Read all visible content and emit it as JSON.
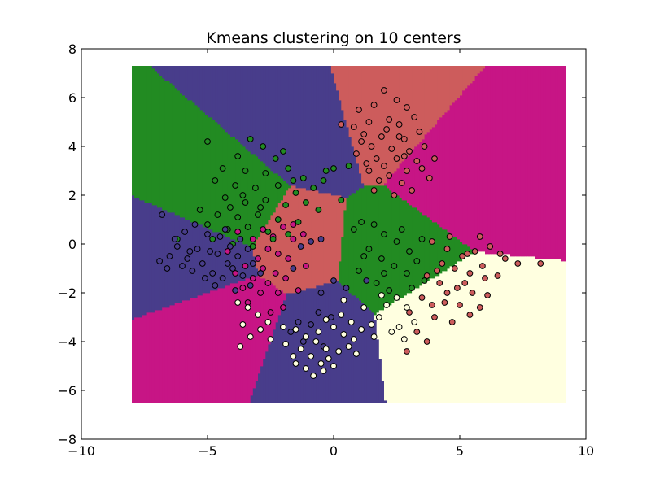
{
  "chart_data": {
    "type": "scatter",
    "title": "Kmeans clustering on 10 centers",
    "xlabel": "",
    "ylabel": "",
    "xlim": [
      -10,
      10
    ],
    "ylim": [
      -8,
      8
    ],
    "x_ticks": [
      -10,
      -5,
      0,
      5,
      10
    ],
    "y_ticks": [
      -8,
      -6,
      -4,
      -2,
      0,
      2,
      4,
      6,
      8
    ],
    "x_tick_labels": [
      "−10",
      "−5",
      "0",
      "5",
      "10"
    ],
    "y_tick_labels": [
      "−8",
      "−6",
      "−4",
      "−2",
      "0",
      "2",
      "4",
      "6",
      "8"
    ],
    "grid": false,
    "legend": "none",
    "background_regions": {
      "extent": {
        "x": [
          -8,
          9.2
        ],
        "y": [
          -6.5,
          7.3
        ]
      },
      "centers": [
        {
          "x": -0.8,
          "y": 4.6,
          "color": "#483D8B"
        },
        {
          "x": 1.8,
          "y": 5.3,
          "color": "#CD5C5C"
        },
        {
          "x": 4.8,
          "y": 2.8,
          "color": "#C71585"
        },
        {
          "x": -3.8,
          "y": 1.2,
          "color": "#228B22"
        },
        {
          "x": -1.8,
          "y": 0.0,
          "color": "#CD5C5C"
        },
        {
          "x": -4.6,
          "y": -0.6,
          "color": "#483D8B"
        },
        {
          "x": 2.4,
          "y": -0.4,
          "color": "#228B22"
        },
        {
          "x": -3.8,
          "y": -2.8,
          "color": "#C71585"
        },
        {
          "x": -0.8,
          "y": -3.8,
          "color": "#483D8B"
        },
        {
          "x": 4.2,
          "y": -3.2,
          "color": "#FFFFE0"
        }
      ]
    },
    "series": [
      {
        "color": "#CD5C5C",
        "points": [
          [
            2.0,
            6.3
          ],
          [
            2.5,
            5.9
          ],
          [
            1.6,
            5.7
          ],
          [
            2.9,
            5.6
          ],
          [
            1.0,
            5.5
          ],
          [
            3.2,
            5.2
          ],
          [
            1.4,
            5.0
          ],
          [
            2.2,
            5.1
          ],
          [
            0.8,
            4.8
          ],
          [
            2.6,
            4.9
          ],
          [
            3.4,
            4.6
          ],
          [
            1.2,
            4.5
          ],
          [
            1.9,
            4.4
          ],
          [
            2.8,
            4.3
          ],
          [
            3.6,
            4.0
          ],
          [
            1.5,
            4.0
          ],
          [
            2.3,
            3.9
          ],
          [
            3.0,
            3.8
          ],
          [
            0.9,
            3.7
          ],
          [
            1.7,
            3.5
          ],
          [
            2.5,
            3.5
          ],
          [
            3.3,
            3.4
          ],
          [
            2.0,
            3.2
          ],
          [
            2.9,
            3.0
          ],
          [
            1.4,
            3.0
          ],
          [
            3.5,
            3.1
          ],
          [
            2.2,
            2.8
          ],
          [
            1.8,
            2.6
          ],
          [
            2.7,
            2.5
          ],
          [
            3.1,
            2.2
          ],
          [
            1.6,
            2.2
          ],
          [
            2.4,
            2.0
          ],
          [
            4.0,
            3.5
          ],
          [
            1.1,
            4.2
          ],
          [
            2.1,
            4.7
          ],
          [
            0.3,
            4.9
          ],
          [
            3.8,
            2.7
          ],
          [
            2.8,
            3.6
          ],
          [
            1.3,
            3.3
          ],
          [
            2.6,
            4.4
          ],
          [
            3.9,
            0.1
          ],
          [
            4.5,
            -0.2
          ],
          [
            5.1,
            -0.5
          ],
          [
            5.6,
            -0.3
          ],
          [
            6.2,
            -0.1
          ],
          [
            6.8,
            -0.6
          ],
          [
            7.3,
            -0.8
          ],
          [
            8.2,
            -0.8
          ],
          [
            4.3,
            -0.8
          ],
          [
            4.8,
            -1.0
          ],
          [
            5.4,
            -1.2
          ],
          [
            6.0,
            -1.4
          ],
          [
            6.5,
            -1.3
          ],
          [
            3.7,
            -1.3
          ],
          [
            4.2,
            -1.6
          ],
          [
            4.9,
            -1.8
          ],
          [
            5.5,
            -2.0
          ],
          [
            6.1,
            -2.1
          ],
          [
            3.5,
            -2.2
          ],
          [
            4.4,
            -2.4
          ],
          [
            5.0,
            -2.5
          ],
          [
            5.8,
            -2.6
          ],
          [
            3.0,
            -2.8
          ],
          [
            4.0,
            -3.0
          ],
          [
            4.7,
            -3.2
          ],
          [
            3.3,
            -3.6
          ],
          [
            3.7,
            -4.0
          ],
          [
            2.9,
            -4.4
          ],
          [
            5.3,
            -0.4
          ],
          [
            4.6,
            0.3
          ],
          [
            5.8,
            0.3
          ],
          [
            4.1,
            -1.1
          ],
          [
            5.2,
            -1.6
          ],
          [
            6.6,
            -0.4
          ],
          [
            5.9,
            -0.9
          ],
          [
            4.5,
            -2.0
          ],
          [
            3.9,
            -2.5
          ],
          [
            5.4,
            -2.9
          ]
        ]
      },
      {
        "color": "#C71585",
        "points": [
          [
            -2.8,
            0.6
          ],
          [
            -2.4,
            0.3
          ],
          [
            -2.0,
            0.7
          ],
          [
            -1.6,
            0.2
          ],
          [
            -3.2,
            0.2
          ],
          [
            -2.6,
            -0.2
          ],
          [
            -2.2,
            -0.4
          ],
          [
            -1.8,
            -0.6
          ],
          [
            -3.0,
            -0.6
          ],
          [
            -3.5,
            -0.9
          ],
          [
            -2.8,
            -1.0
          ],
          [
            -2.3,
            -1.2
          ],
          [
            -1.9,
            -1.4
          ],
          [
            -3.2,
            -1.4
          ],
          [
            -2.6,
            -1.6
          ],
          [
            -3.6,
            -1.8
          ],
          [
            -2.9,
            -2.0
          ],
          [
            -2.2,
            -2.0
          ],
          [
            -3.4,
            -2.4
          ],
          [
            -1.4,
            -1.9
          ],
          [
            -2.0,
            -2.6
          ],
          [
            -1.6,
            0.8
          ],
          [
            -1.2,
            0.4
          ],
          [
            -3.8,
            0.5
          ],
          [
            -3.9,
            -1.2
          ],
          [
            -4.2,
            -0.3
          ],
          [
            -1.1,
            -0.9
          ],
          [
            -2.5,
            -2.8
          ]
        ]
      },
      {
        "color": "#228B22",
        "points": [
          [
            -5.0,
            4.2
          ],
          [
            -3.3,
            4.3
          ],
          [
            -2.8,
            4.0
          ],
          [
            -3.8,
            3.6
          ],
          [
            -2.3,
            3.5
          ],
          [
            -4.4,
            3.1
          ],
          [
            -3.5,
            3.0
          ],
          [
            -2.7,
            2.9
          ],
          [
            -1.8,
            3.1
          ],
          [
            -1.2,
            2.7
          ],
          [
            -4.7,
            2.6
          ],
          [
            -3.9,
            2.4
          ],
          [
            -3.1,
            2.3
          ],
          [
            -2.2,
            2.4
          ],
          [
            -1.5,
            2.1
          ],
          [
            -0.8,
            2.3
          ],
          [
            -0.4,
            2.6
          ],
          [
            -4.3,
            1.9
          ],
          [
            -3.5,
            1.7
          ],
          [
            -2.7,
            1.8
          ],
          [
            -1.9,
            1.6
          ],
          [
            -1.1,
            1.7
          ],
          [
            -5.3,
            1.4
          ],
          [
            -4.6,
            1.2
          ],
          [
            -3.8,
            1.1
          ],
          [
            -3.0,
            1.2
          ],
          [
            -2.2,
            1.0
          ],
          [
            -1.4,
            0.9
          ],
          [
            -0.6,
            1.4
          ],
          [
            -5.0,
            0.8
          ],
          [
            -4.2,
            0.6
          ],
          [
            -3.4,
            0.7
          ],
          [
            -2.6,
            0.5
          ],
          [
            -1.8,
            0.4
          ],
          [
            -4.8,
            0.2
          ],
          [
            -4.0,
            0.0
          ],
          [
            -3.2,
            -0.1
          ],
          [
            -2.4,
            0.2
          ],
          [
            0.0,
            3.1
          ],
          [
            0.3,
            1.8
          ],
          [
            -6.2,
            0.2
          ],
          [
            -2.0,
            3.8
          ],
          [
            -3.6,
            2.0
          ],
          [
            -2.9,
            1.5
          ],
          [
            -1.6,
            2.6
          ],
          [
            -4.1,
            1.5
          ],
          [
            -0.3,
            3.0
          ],
          [
            0.6,
            3.2
          ],
          [
            0.8,
            0.6
          ],
          [
            1.1,
            0.9
          ],
          [
            1.6,
            0.8
          ],
          [
            2.0,
            0.4
          ],
          [
            2.5,
            0.1
          ],
          [
            3.0,
            -0.3
          ],
          [
            3.5,
            0.2
          ],
          [
            1.4,
            -0.2
          ],
          [
            1.9,
            -0.6
          ],
          [
            2.4,
            -0.9
          ],
          [
            2.9,
            -1.2
          ],
          [
            3.3,
            -0.7
          ],
          [
            1.0,
            -1.1
          ],
          [
            1.7,
            -1.6
          ],
          [
            2.2,
            -1.9
          ],
          [
            3.6,
            -1.5
          ],
          [
            1.2,
            -0.5
          ],
          [
            2.7,
            0.6
          ],
          [
            3.1,
            -1.8
          ],
          [
            2.0,
            -1.2
          ]
        ]
      },
      {
        "color": "#483D8B",
        "points": [
          [
            -6.8,
            1.2
          ],
          [
            -6.2,
            -0.1
          ],
          [
            -5.8,
            -0.6
          ],
          [
            -5.4,
            -0.2
          ],
          [
            -5.0,
            0.4
          ],
          [
            -4.6,
            -0.4
          ],
          [
            -4.2,
            -0.8
          ],
          [
            -3.8,
            -0.5
          ],
          [
            -3.4,
            -0.2
          ],
          [
            -6.5,
            -0.5
          ],
          [
            -6.0,
            -0.9
          ],
          [
            -5.6,
            -1.1
          ],
          [
            -5.2,
            -0.8
          ],
          [
            -4.8,
            -1.2
          ],
          [
            -4.4,
            -1.4
          ],
          [
            -4.0,
            -1.0
          ],
          [
            -3.6,
            -1.3
          ],
          [
            -3.2,
            -0.8
          ],
          [
            -5.9,
            0.5
          ],
          [
            -5.5,
            0.8
          ],
          [
            -4.9,
            -0.3
          ],
          [
            -4.5,
            0.3
          ],
          [
            -4.1,
            -0.1
          ],
          [
            -3.7,
            0.2
          ],
          [
            -6.3,
            0.2
          ],
          [
            -5.1,
            -1.4
          ],
          [
            -4.7,
            -1.7
          ],
          [
            -3.9,
            -1.9
          ],
          [
            -3.3,
            -1.7
          ],
          [
            -2.9,
            -1.2
          ],
          [
            -6.9,
            -0.7
          ],
          [
            -4.3,
            0.6
          ],
          [
            -5.7,
            -0.3
          ],
          [
            -6.6,
            -1.0
          ],
          [
            -1.3,
            -0.1
          ],
          [
            -0.9,
            0.1
          ],
          [
            -0.5,
            0.2
          ],
          [
            -0.5,
            -2.0
          ],
          [
            0.5,
            -1.8
          ],
          [
            1.3,
            -1.5
          ],
          [
            0.0,
            -1.5
          ],
          [
            -1.6,
            -1.0
          ],
          [
            -1.4,
            -3.2
          ],
          [
            -0.9,
            -3.3
          ],
          [
            -0.6,
            -2.8
          ],
          [
            -1.2,
            -4.0
          ],
          [
            -0.4,
            -4.2
          ],
          [
            -1.7,
            -3.6
          ],
          [
            -0.1,
            -3.0
          ]
        ]
      },
      {
        "color": "#FFFFE0",
        "points": [
          [
            -3.8,
            -2.4
          ],
          [
            -3.4,
            -2.6
          ],
          [
            -3.0,
            -2.9
          ],
          [
            -2.6,
            -3.2
          ],
          [
            -3.6,
            -3.3
          ],
          [
            -2.9,
            -3.5
          ],
          [
            -3.3,
            -3.8
          ],
          [
            -2.5,
            -3.9
          ],
          [
            -3.7,
            -4.2
          ],
          [
            -1.5,
            -3.5
          ],
          [
            -1.1,
            -3.8
          ],
          [
            -0.7,
            -4.0
          ],
          [
            -0.3,
            -4.3
          ],
          [
            -1.3,
            -4.3
          ],
          [
            -0.9,
            -4.6
          ],
          [
            -0.5,
            -4.9
          ],
          [
            -1.5,
            -4.9
          ],
          [
            -1.1,
            -5.1
          ],
          [
            -0.8,
            -5.4
          ],
          [
            -0.2,
            -4.7
          ],
          [
            0.2,
            -4.4
          ],
          [
            0.6,
            -4.2
          ],
          [
            -0.6,
            -3.6
          ],
          [
            0.0,
            -3.4
          ],
          [
            0.4,
            -3.7
          ],
          [
            0.8,
            -3.9
          ],
          [
            -0.3,
            -3.1
          ],
          [
            0.3,
            -2.9
          ],
          [
            0.7,
            -3.2
          ],
          [
            1.1,
            -3.5
          ],
          [
            1.5,
            -3.3
          ],
          [
            1.8,
            -3.0
          ],
          [
            1.2,
            -2.6
          ],
          [
            2.1,
            -2.5
          ],
          [
            2.5,
            -2.2
          ],
          [
            2.9,
            -2.6
          ],
          [
            1.6,
            -3.8
          ],
          [
            2.3,
            -3.6
          ],
          [
            0.9,
            -4.5
          ],
          [
            -1.9,
            -4.1
          ],
          [
            -1.6,
            -4.6
          ],
          [
            0.0,
            -5.0
          ],
          [
            -2.0,
            -3.4
          ],
          [
            0.4,
            -2.3
          ],
          [
            1.9,
            -2.1
          ],
          [
            3.2,
            -3.2
          ],
          [
            2.6,
            -3.4
          ],
          [
            2.8,
            -3.9
          ],
          [
            -0.4,
            -5.2
          ]
        ]
      }
    ]
  }
}
